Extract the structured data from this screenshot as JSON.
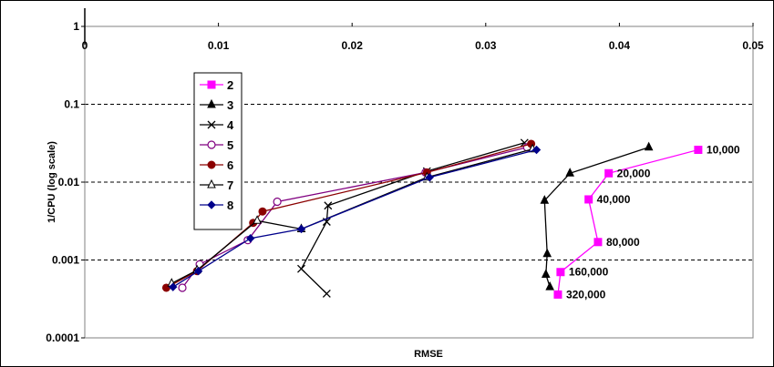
{
  "chart_data": {
    "type": "line",
    "xlabel": "RMSE",
    "ylabel": "1/CPU (log scale)",
    "xlim": [
      0,
      0.05
    ],
    "ylim": [
      0.0001,
      1
    ],
    "yscale": "log",
    "xticks": [
      "0",
      "0.01",
      "0.02",
      "0.03",
      "0.04",
      "0.05"
    ],
    "yticks": [
      "1",
      "0.1",
      "0.01",
      "0.001",
      "0.0001"
    ],
    "grid": "horizontal dashed",
    "legend_position": "upper-left",
    "series": [
      {
        "name": "2",
        "color": "#ff00ff",
        "marker": "square-filled",
        "x": [
          0.0459,
          0.0392,
          0.0377,
          0.0384,
          0.0356,
          0.0354
        ],
        "y": [
          0.026,
          0.013,
          0.006,
          0.0017,
          0.0007,
          0.00036
        ]
      },
      {
        "name": "3",
        "color": "#000000",
        "marker": "triangle-filled",
        "x": [
          0.0422,
          0.0363,
          0.0344,
          0.0346,
          0.0345,
          0.0348
        ],
        "y": [
          0.028,
          0.013,
          0.0058,
          0.0012,
          0.00065,
          0.00045
        ]
      },
      {
        "name": "4",
        "color": "#000000",
        "marker": "x",
        "x": [
          0.0181,
          0.0162,
          0.0181,
          0.0182,
          0.0256,
          0.0329
        ],
        "y": [
          0.00037,
          0.00077,
          0.0031,
          0.005,
          0.0138,
          0.032
        ]
      },
      {
        "name": "5",
        "color": "#800080",
        "marker": "circle-open",
        "x": [
          0.0073,
          0.0086,
          0.0122,
          0.0144,
          0.0255,
          0.0331
        ],
        "y": [
          0.00044,
          0.00088,
          0.0018,
          0.0056,
          0.0133,
          0.028
        ]
      },
      {
        "name": "6",
        "color": "#8b0000",
        "marker": "circle-filled",
        "x": [
          0.0061,
          0.0084,
          0.0126,
          0.0133,
          0.0256,
          0.0334
        ],
        "y": [
          0.00044,
          0.00072,
          0.003,
          0.0042,
          0.0133,
          0.031
        ]
      },
      {
        "name": "7",
        "color": "#000000",
        "marker": "triangle-open",
        "x": [
          0.0065,
          0.0084,
          0.0129,
          0.0162,
          0.0256,
          0.0335
        ],
        "y": [
          0.0005,
          0.00074,
          0.0032,
          0.0025,
          0.0115,
          0.0265
        ]
      },
      {
        "name": "8",
        "color": "#00008b",
        "marker": "diamond-filled",
        "x": [
          0.0066,
          0.0085,
          0.0124,
          0.0162,
          0.0258,
          0.0338
        ],
        "y": [
          0.00045,
          0.00072,
          0.0019,
          0.0025,
          0.0115,
          0.026
        ]
      }
    ],
    "annotations": [
      {
        "text": "10,000",
        "x": 0.0459,
        "y": 0.026
      },
      {
        "text": "20,000",
        "x": 0.0392,
        "y": 0.013
      },
      {
        "text": "40,000",
        "x": 0.0377,
        "y": 0.006
      },
      {
        "text": "80,000",
        "x": 0.0384,
        "y": 0.0017
      },
      {
        "text": "160,000",
        "x": 0.0356,
        "y": 0.0007
      },
      {
        "text": "320,000",
        "x": 0.0354,
        "y": 0.00036
      }
    ]
  }
}
